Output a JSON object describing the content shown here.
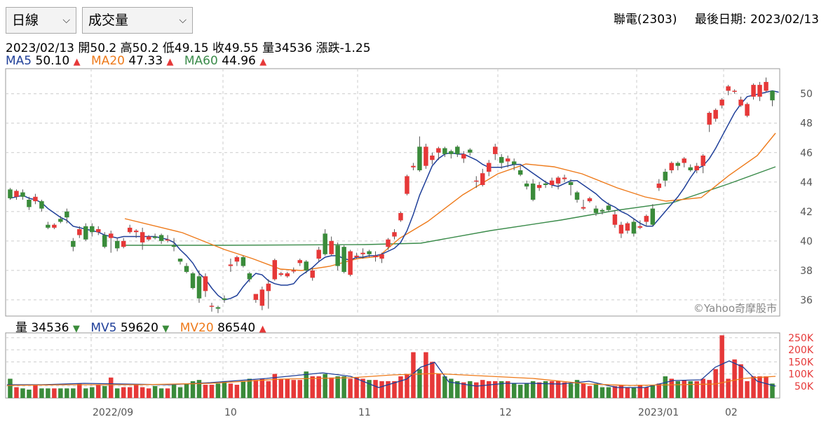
{
  "controls": {
    "period_label": "日線",
    "indicator_label": "成交量"
  },
  "header": {
    "stock": "聯電(2303)",
    "last_date_label": "最後日期: 2023/02/13"
  },
  "quote": {
    "date": "2023/02/13",
    "open": "開50.2",
    "high": "高50.2",
    "low": "低49.15",
    "close": "收49.55",
    "volume": "量34536",
    "change": "漲跌-1.25"
  },
  "ma_legend": {
    "ma5_label": "MA5",
    "ma5_value": "50.10",
    "ma20_label": "MA20",
    "ma20_value": "47.33",
    "ma60_label": "MA60",
    "ma60_value": "44.96"
  },
  "vol_legend": {
    "vol_label": "量",
    "vol_value": "34536",
    "mv5_label": "MV5",
    "mv5_value": "59620",
    "mv20_label": "MV20",
    "mv20_value": "86540"
  },
  "watermark": "©Yahoo奇摩股市",
  "colors": {
    "up": "#e63838",
    "down": "#3a8b3a",
    "ma5": "#1f3f99",
    "ma20": "#ee7a1a",
    "ma60": "#3a8b4a",
    "grid": "#cccccc"
  },
  "chart_data": [
    {
      "type": "candlestick",
      "yaxis_ticks": [
        36,
        38,
        40,
        42,
        44,
        46,
        48,
        50
      ],
      "ylim": [
        34.9,
        51.7
      ],
      "candles": [
        [
          43.5,
          42.9,
          43.6,
          42.8
        ],
        [
          43.0,
          43.4,
          43.5,
          42.8
        ],
        [
          43.3,
          43.0,
          43.5,
          42.8
        ],
        [
          42.8,
          42.3,
          43.0,
          42.1
        ],
        [
          42.7,
          43.0,
          43.2,
          42.5
        ],
        [
          42.7,
          42.2,
          42.8,
          42.0
        ],
        [
          41.1,
          40.9,
          41.3,
          40.8
        ],
        [
          40.9,
          41.1,
          41.2,
          40.8
        ],
        [
          41.5,
          41.3,
          41.7,
          41.2
        ],
        [
          42.0,
          41.6,
          42.2,
          41.2
        ],
        [
          40.0,
          39.6,
          40.2,
          39.3
        ],
        [
          40.4,
          40.8,
          41.0,
          40.2
        ],
        [
          41.0,
          40.1,
          41.2,
          40.0
        ],
        [
          41.0,
          40.6,
          41.2,
          40.3
        ],
        [
          40.6,
          40.8,
          41.0,
          40.4
        ],
        [
          40.4,
          39.6,
          40.6,
          39.5
        ],
        [
          40.2,
          40.5,
          40.7,
          39.2
        ],
        [
          40.0,
          39.5,
          40.2,
          39.3
        ],
        [
          39.6,
          40.0,
          40.2,
          39.5
        ],
        [
          40.6,
          40.9,
          41.1,
          40.5
        ],
        [
          40.6,
          40.7,
          40.8,
          40.2
        ],
        [
          39.9,
          40.6,
          40.9,
          39.4
        ],
        [
          40.1,
          40.3,
          40.4,
          40.0
        ],
        [
          40.3,
          40.2,
          40.5,
          40.1
        ],
        [
          40.4,
          40.0,
          40.5,
          39.8
        ],
        [
          40.1,
          40.1,
          40.4,
          39.9
        ],
        [
          39.7,
          39.6,
          40.2,
          39.3
        ],
        [
          38.8,
          38.6,
          38.8,
          38.4
        ],
        [
          38.3,
          37.9,
          38.5,
          37.8
        ],
        [
          37.8,
          36.8,
          37.9,
          36.7
        ],
        [
          37.6,
          36.1,
          38.0,
          35.8
        ],
        [
          36.6,
          37.6,
          37.8,
          36.2
        ],
        [
          35.6,
          35.6,
          35.8,
          35.2
        ],
        [
          35.5,
          35.4,
          35.6,
          35.1
        ],
        [
          36.1,
          36.0,
          36.3,
          35.8
        ],
        [
          38.3,
          38.4,
          38.8,
          37.9
        ],
        [
          38.6,
          38.9,
          39.0,
          38.3
        ],
        [
          38.9,
          38.3,
          39.0,
          38.2
        ],
        [
          37.8,
          37.4,
          37.9,
          37.2
        ],
        [
          36.0,
          36.4,
          36.4,
          35.8
        ],
        [
          35.6,
          36.7,
          36.9,
          35.3
        ],
        [
          36.6,
          37.1,
          37.4,
          35.4
        ],
        [
          37.4,
          38.7,
          38.8,
          37.3
        ],
        [
          37.7,
          37.8,
          37.9,
          37.6
        ],
        [
          37.6,
          37.8,
          37.9,
          37.5
        ],
        [
          38.0,
          38.0,
          38.2,
          37.8
        ],
        [
          38.5,
          38.7,
          38.8,
          38.3
        ],
        [
          38.6,
          38.0,
          38.7,
          37.8
        ],
        [
          37.5,
          38.0,
          38.2,
          37.3
        ],
        [
          38.8,
          39.4,
          39.6,
          38.6
        ],
        [
          40.5,
          39.1,
          40.8,
          39.0
        ],
        [
          39.1,
          40.0,
          40.3,
          39.0
        ],
        [
          39.7,
          38.3,
          39.9,
          38.0
        ],
        [
          39.6,
          37.9,
          39.7,
          37.8
        ],
        [
          37.7,
          39.3,
          39.4,
          37.6
        ],
        [
          38.9,
          39.0,
          39.2,
          38.8
        ],
        [
          39.1,
          39.2,
          39.5,
          38.8
        ],
        [
          39.3,
          39.1,
          39.4,
          38.9
        ],
        [
          38.9,
          39.0,
          39.3,
          38.6
        ],
        [
          38.8,
          39.1,
          39.2,
          38.5
        ],
        [
          39.6,
          40.1,
          40.2,
          39.4
        ],
        [
          40.3,
          40.6,
          40.8,
          40.1
        ],
        [
          41.4,
          41.9,
          42.0,
          41.3
        ],
        [
          43.2,
          44.4,
          44.5,
          43.1
        ],
        [
          45.0,
          45.1,
          45.3,
          44.8
        ],
        [
          46.4,
          44.8,
          47.1,
          44.7
        ],
        [
          45.1,
          46.4,
          46.6,
          44.9
        ],
        [
          45.5,
          45.8,
          46.0,
          45.2
        ],
        [
          46.0,
          46.3,
          46.4,
          45.5
        ],
        [
          46.3,
          45.9,
          46.4,
          45.7
        ],
        [
          46.1,
          45.9,
          46.2,
          45.6
        ],
        [
          46.4,
          45.9,
          46.5,
          45.7
        ],
        [
          45.6,
          45.9,
          46.1,
          45.3
        ],
        [
          46.2,
          46.0,
          46.3,
          45.8
        ],
        [
          44.1,
          44.1,
          44.4,
          43.6
        ],
        [
          43.8,
          44.6,
          44.9,
          43.7
        ],
        [
          44.7,
          45.3,
          45.5,
          44.4
        ],
        [
          45.9,
          46.4,
          46.6,
          45.5
        ],
        [
          45.7,
          45.3,
          45.9,
          44.9
        ],
        [
          45.4,
          45.6,
          45.8,
          45.0
        ],
        [
          45.4,
          45.2,
          45.6,
          44.8
        ],
        [
          44.8,
          44.5,
          45.1,
          44.4
        ],
        [
          43.9,
          43.7,
          44.1,
          43.5
        ],
        [
          43.9,
          42.8,
          44.2,
          42.7
        ],
        [
          43.6,
          43.8,
          44.0,
          43.4
        ],
        [
          43.9,
          43.8,
          44.1,
          43.6
        ],
        [
          43.8,
          44.1,
          44.3,
          43.6
        ],
        [
          43.9,
          44.3,
          44.4,
          43.5
        ],
        [
          44.2,
          44.3,
          44.5,
          44.0
        ],
        [
          44.0,
          43.8,
          44.2,
          43.1
        ],
        [
          43.3,
          42.8,
          43.4,
          42.6
        ],
        [
          42.2,
          42.3,
          42.8,
          42.1
        ],
        [
          42.7,
          42.9,
          43.0,
          42.6
        ],
        [
          42.2,
          41.9,
          42.4,
          41.7
        ],
        [
          42.1,
          42.0,
          42.2,
          41.8
        ],
        [
          42.4,
          42.1,
          42.6,
          42.0
        ],
        [
          41.1,
          41.8,
          42.1,
          40.9
        ],
        [
          40.5,
          41.1,
          41.3,
          40.2
        ],
        [
          40.7,
          41.2,
          41.3,
          40.5
        ],
        [
          41.3,
          40.5,
          41.5,
          40.3
        ],
        [
          40.9,
          41.0,
          41.4,
          40.8
        ],
        [
          41.3,
          41.7,
          41.8,
          41.0
        ],
        [
          42.2,
          41.1,
          42.5,
          41.0
        ],
        [
          43.6,
          43.9,
          44.2,
          43.4
        ],
        [
          44.7,
          44.1,
          44.9,
          43.7
        ],
        [
          44.8,
          45.3,
          45.4,
          44.6
        ],
        [
          45.3,
          45.1,
          45.4,
          44.8
        ],
        [
          45.3,
          45.6,
          45.7,
          45.0
        ],
        [
          45.0,
          44.8,
          45.2,
          44.7
        ],
        [
          44.8,
          45.1,
          45.3,
          44.6
        ],
        [
          45.1,
          45.8,
          45.9,
          44.6
        ],
        [
          47.9,
          48.7,
          48.8,
          47.4
        ],
        [
          48.3,
          48.9,
          49.0,
          48.1
        ],
        [
          49.2,
          49.6,
          49.7,
          49.0
        ],
        [
          50.2,
          50.5,
          50.6,
          49.9
        ],
        [
          50.2,
          50.2,
          50.3,
          50.0
        ],
        [
          49.2,
          49.6,
          49.8,
          49.1
        ],
        [
          48.5,
          49.3,
          49.4,
          48.4
        ],
        [
          49.8,
          50.6,
          50.7,
          49.6
        ],
        [
          49.8,
          50.6,
          50.8,
          49.5
        ],
        [
          50.2,
          50.8,
          51.1,
          50.1
        ],
        [
          50.2,
          49.55,
          50.2,
          49.15
        ]
      ],
      "ma5": [
        42.9,
        43.0,
        43.1,
        42.9,
        42.8,
        42.6,
        42.2,
        41.9,
        41.6,
        41.4,
        41.0,
        40.9,
        40.8,
        40.7,
        40.6,
        40.4,
        40.3,
        40.2,
        40.3,
        40.3,
        40.3,
        40.3,
        40.3,
        40.3,
        40.2,
        40.1,
        39.9,
        39.4,
        39.0,
        38.5,
        37.8,
        37.4,
        36.8,
        36.3,
        36.0,
        36.1,
        36.3,
        36.9,
        37.4,
        37.8,
        37.7,
        37.3,
        37.1,
        37.0,
        37.0,
        37.1,
        37.6,
        37.9,
        38.2,
        38.6,
        38.9,
        39.0,
        39.0,
        38.8,
        38.7,
        38.9,
        38.9,
        39.0,
        39.0,
        39.1,
        39.3,
        39.5,
        39.9,
        40.7,
        41.8,
        43.1,
        44.1,
        45.1,
        45.6,
        45.9,
        46.0,
        45.9,
        45.9,
        45.7,
        45.5,
        45.2,
        45.0,
        45.0,
        45.0,
        45.1,
        45.2,
        45.2,
        44.9,
        44.6,
        44.3,
        44.0,
        43.8,
        43.7,
        43.9,
        44.1,
        44.1,
        43.8,
        43.5,
        43.2,
        42.8,
        42.5,
        42.3,
        42.0,
        41.8,
        41.5,
        41.2,
        41.0,
        41.0,
        41.5,
        42.0,
        42.5,
        43.0,
        43.6,
        44.3,
        44.9,
        45.1,
        45.6,
        46.3,
        47.1,
        47.9,
        48.7,
        49.3,
        49.8,
        49.9,
        50.0,
        50.1,
        50.2,
        50.1
      ]
    },
    {
      "type": "bar",
      "yaxis_ticks": [
        "50K",
        "100K",
        "150K",
        "200K",
        "250K"
      ],
      "ylim": [
        0,
        270000
      ],
      "volumes": [
        80,
        45,
        40,
        35,
        55,
        40,
        40,
        40,
        40,
        40,
        40,
        60,
        40,
        45,
        55,
        50,
        85,
        40,
        45,
        45,
        55,
        45,
        40,
        50,
        40,
        40,
        55,
        45,
        60,
        70,
        75,
        55,
        55,
        60,
        70,
        60,
        55,
        70,
        80,
        75,
        80,
        70,
        100,
        80,
        80,
        75,
        75,
        110,
        90,
        90,
        100,
        85,
        90,
        90,
        80,
        85,
        80,
        75,
        75,
        70,
        70,
        70,
        90,
        100,
        190,
        120,
        190,
        150,
        100,
        90,
        80,
        70,
        65,
        70,
        65,
        75,
        70,
        70,
        70,
        70,
        60,
        55,
        60,
        70,
        65,
        70,
        70,
        70,
        65,
        60,
        75,
        60,
        50,
        60,
        45,
        45,
        50,
        55,
        45,
        45,
        55,
        45,
        55,
        60,
        90,
        80,
        70,
        75,
        70,
        70,
        80,
        75,
        120,
        260,
        80,
        160,
        140,
        70,
        90,
        90,
        90,
        60,
        35
      ]
    }
  ]
}
